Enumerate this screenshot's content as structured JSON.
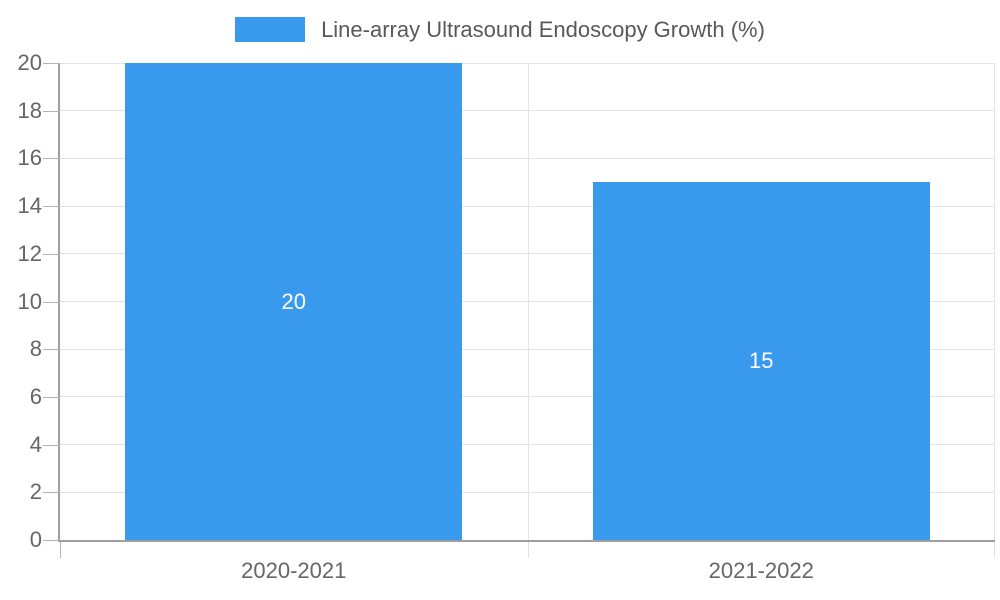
{
  "chart_data": {
    "type": "bar",
    "title": "",
    "legend": "Line-array Ultrasound Endoscopy Growth (%)",
    "legend_position": "top-center",
    "categories": [
      "2020-2021",
      "2021-2022"
    ],
    "values": [
      20,
      15
    ],
    "data_labels": [
      "20",
      "15"
    ],
    "xlabel": "",
    "ylabel": "",
    "ylim": [
      0,
      20
    ],
    "yticks": [
      0,
      2,
      4,
      6,
      8,
      10,
      12,
      14,
      16,
      18,
      20
    ],
    "grid": true,
    "colors": {
      "bar": "#3999ec",
      "grid": "#e4e4e4",
      "axis": "#9e9e9e",
      "tick_mark": "#b3b3b3",
      "boundary_stub": "#e0e0e0",
      "tick_text": "#666666",
      "legend_text": "#595959",
      "data_label_text": "#ffffff",
      "background": "#ffffff"
    }
  }
}
